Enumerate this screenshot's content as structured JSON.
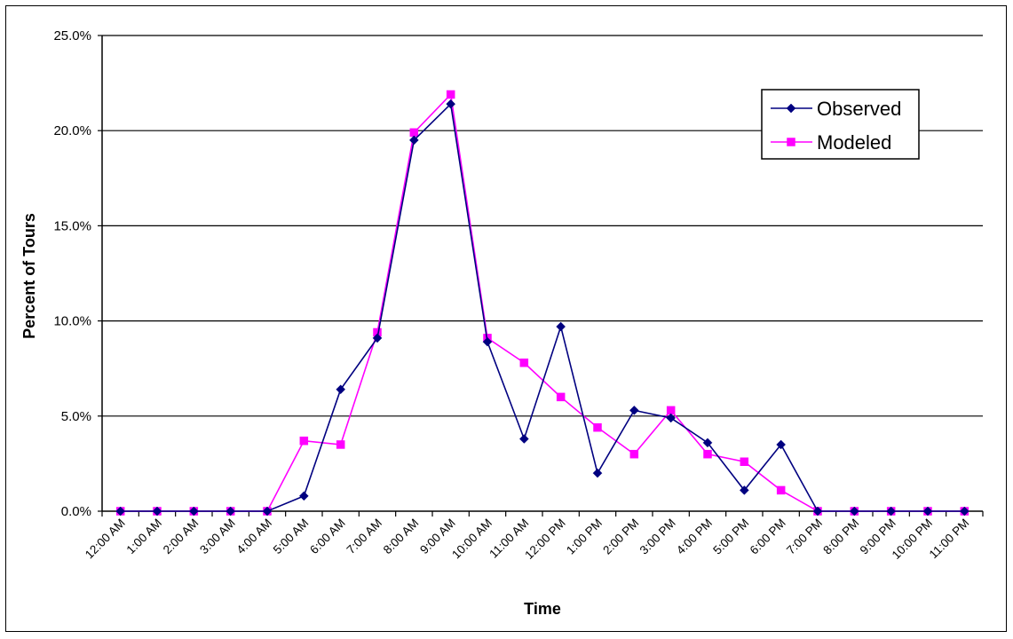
{
  "chart_data": {
    "type": "line",
    "title": "",
    "xlabel": "Time",
    "ylabel": "Percent of Tours",
    "ylim": [
      0,
      25
    ],
    "y_ticks": [
      "0.0%",
      "5.0%",
      "10.0%",
      "15.0%",
      "20.0%",
      "25.0%"
    ],
    "y_tick_values": [
      0,
      5,
      10,
      15,
      20,
      25
    ],
    "categories": [
      "12:00 AM",
      "1:00 AM",
      "2:00 AM",
      "3:00 AM",
      "4:00 AM",
      "5:00 AM",
      "6:00 AM",
      "7:00 AM",
      "8:00 AM",
      "9:00 AM",
      "10:00 AM",
      "11:00 AM",
      "12:00 PM",
      "1:00 PM",
      "2:00 PM",
      "3:00 PM",
      "4:00 PM",
      "5:00 PM",
      "6:00 PM",
      "7:00 PM",
      "8:00 PM",
      "9:00 PM",
      "10:00 PM",
      "11:00 PM"
    ],
    "grid": "horizontal",
    "legend_position": "top-right",
    "series": [
      {
        "name": "Observed",
        "color": "#000080",
        "marker": "diamond",
        "values": [
          0.0,
          0.0,
          0.0,
          0.0,
          0.0,
          0.8,
          6.4,
          9.1,
          19.5,
          21.4,
          8.9,
          3.8,
          9.7,
          2.0,
          5.3,
          4.9,
          3.6,
          1.1,
          3.5,
          0.0,
          0.0,
          0.0,
          0.0,
          0.0
        ]
      },
      {
        "name": "Modeled",
        "color": "#ff00ff",
        "marker": "square",
        "values": [
          0.0,
          0.0,
          0.0,
          0.0,
          0.0,
          3.7,
          3.5,
          9.4,
          19.9,
          21.9,
          9.1,
          7.8,
          6.0,
          4.4,
          3.0,
          5.3,
          3.0,
          2.6,
          1.1,
          0.0,
          0.0,
          0.0,
          0.0,
          0.0
        ]
      }
    ]
  }
}
